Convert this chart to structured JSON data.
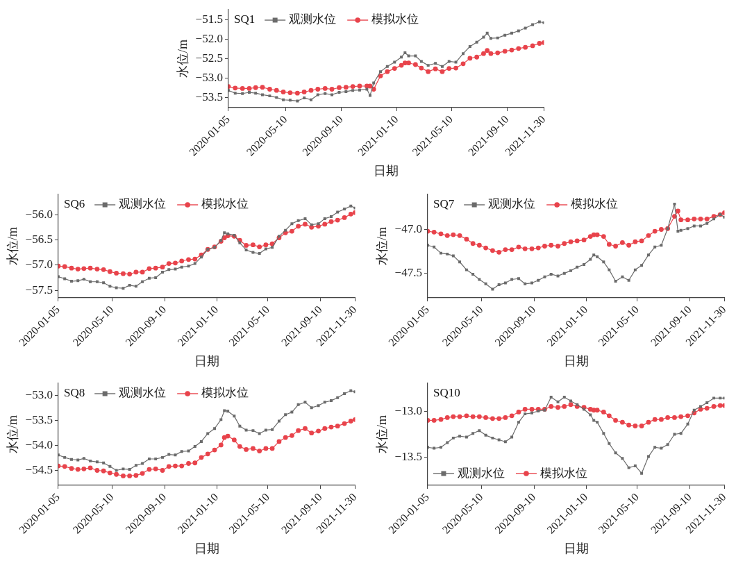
{
  "chart_data": [
    {
      "type": "line",
      "title": "SQ1",
      "xlabel": "日期",
      "ylabel": "水位/m",
      "legend": "top left",
      "x": [
        "2020-01-05",
        "2020-01-20",
        "2020-02-05",
        "2020-02-20",
        "2020-03-05",
        "2020-03-20",
        "2020-04-05",
        "2020-04-20",
        "2020-05-05",
        "2020-05-20",
        "2020-06-05",
        "2020-06-20",
        "2020-07-05",
        "2020-07-20",
        "2020-08-05",
        "2020-08-20",
        "2020-09-05",
        "2020-09-20",
        "2020-10-05",
        "2020-10-20",
        "2020-11-05",
        "2020-11-12",
        "2020-11-20",
        "2020-12-05",
        "2020-12-20",
        "2021-01-05",
        "2021-01-20",
        "2021-01-28",
        "2021-02-05",
        "2021-02-20",
        "2021-03-05",
        "2021-03-20",
        "2021-04-05",
        "2021-04-20",
        "2021-05-05",
        "2021-05-20",
        "2021-06-05",
        "2021-06-20",
        "2021-07-05",
        "2021-07-20",
        "2021-07-28",
        "2021-08-05",
        "2021-08-20",
        "2021-09-05",
        "2021-09-20",
        "2021-10-05",
        "2021-10-20",
        "2021-11-05",
        "2021-11-20",
        "2021-11-30"
      ],
      "xlim": [
        "2020-01-05",
        "2021-11-30"
      ],
      "xticks": [
        "2020-01-05",
        "2020-05-10",
        "2020-09-10",
        "2021-01-10",
        "2021-05-10",
        "2021-09-10",
        "2021-11-30"
      ],
      "ylim": [
        -53.75,
        -51.25
      ],
      "yticks": [
        {
          "value": -53.5,
          "label": "−53.5"
        },
        {
          "value": -53,
          "label": "−53.0"
        },
        {
          "value": -52.5,
          "label": "−52.5"
        },
        {
          "value": -52,
          "label": "−52.0"
        },
        {
          "value": -51.5,
          "label": "−51.5"
        }
      ],
      "series": [
        {
          "name": "观测水位",
          "color": "#6b6b6b",
          "marker": "square",
          "values": [
            -53.31,
            -53.38,
            -53.39,
            -53.36,
            -53.38,
            -53.42,
            -53.45,
            -53.49,
            -53.55,
            -53.56,
            -53.58,
            -53.5,
            -53.55,
            -53.42,
            -53.39,
            -53.42,
            -53.36,
            -53.34,
            -53.31,
            -53.3,
            -53.28,
            -53.44,
            -53.12,
            -52.83,
            -52.7,
            -52.59,
            -52.46,
            -52.35,
            -52.43,
            -52.43,
            -52.57,
            -52.67,
            -52.62,
            -52.7,
            -52.57,
            -52.59,
            -52.37,
            -52.19,
            -52.08,
            -51.95,
            -51.85,
            -51.98,
            -51.97,
            -51.9,
            -51.85,
            -51.79,
            -51.72,
            -51.63,
            -51.56,
            -51.58
          ]
        },
        {
          "name": "模拟水位",
          "color": "#e8434b",
          "marker": "circle",
          "values": [
            -53.21,
            -53.25,
            -53.26,
            -53.26,
            -53.24,
            -53.23,
            -53.28,
            -53.31,
            -53.35,
            -53.37,
            -53.38,
            -53.35,
            -53.31,
            -53.28,
            -53.26,
            -53.28,
            -53.24,
            -53.23,
            -53.21,
            -53.2,
            -53.2,
            -53.2,
            -53.28,
            -52.94,
            -52.83,
            -52.75,
            -52.67,
            -52.61,
            -52.61,
            -52.65,
            -52.74,
            -52.83,
            -52.76,
            -52.83,
            -52.75,
            -52.74,
            -52.63,
            -52.49,
            -52.46,
            -52.37,
            -52.29,
            -52.37,
            -52.35,
            -52.31,
            -52.28,
            -52.24,
            -52.21,
            -52.17,
            -52.11,
            -52.09
          ]
        }
      ]
    },
    {
      "type": "line",
      "title": "SQ6",
      "xlabel": "日期",
      "ylabel": "水位/m",
      "legend": "top left",
      "x": [
        "2020-01-05",
        "2020-01-20",
        "2020-02-05",
        "2020-02-20",
        "2020-03-05",
        "2020-03-20",
        "2020-04-05",
        "2020-04-20",
        "2020-05-05",
        "2020-05-20",
        "2020-06-05",
        "2020-06-20",
        "2020-07-05",
        "2020-07-20",
        "2020-08-05",
        "2020-08-20",
        "2020-09-05",
        "2020-09-20",
        "2020-10-05",
        "2020-10-20",
        "2020-11-05",
        "2020-11-20",
        "2020-12-05",
        "2020-12-20",
        "2021-01-05",
        "2021-01-20",
        "2021-01-28",
        "2021-02-05",
        "2021-02-20",
        "2021-03-05",
        "2021-03-20",
        "2021-04-05",
        "2021-04-20",
        "2021-05-05",
        "2021-05-20",
        "2021-06-05",
        "2021-06-20",
        "2021-07-05",
        "2021-07-20",
        "2021-08-05",
        "2021-08-20",
        "2021-09-05",
        "2021-09-20",
        "2021-10-05",
        "2021-10-20",
        "2021-11-05",
        "2021-11-20",
        "2021-11-30"
      ],
      "xlim": [
        "2020-01-05",
        "2021-11-30"
      ],
      "xticks": [
        "2020-01-05",
        "2020-05-10",
        "2020-09-10",
        "2021-01-10",
        "2021-05-10",
        "2021-09-10",
        "2021-11-30"
      ],
      "ylim": [
        -57.65,
        -55.6
      ],
      "yticks": [
        {
          "value": -57.5,
          "label": "−57.5"
        },
        {
          "value": -57,
          "label": "−57.0"
        },
        {
          "value": -56.5,
          "label": "−56.5"
        },
        {
          "value": -56,
          "label": "−56.0"
        }
      ],
      "series": [
        {
          "name": "观测水位",
          "color": "#6b6b6b",
          "marker": "square",
          "values": [
            -57.23,
            -57.27,
            -57.32,
            -57.31,
            -57.28,
            -57.33,
            -57.33,
            -57.35,
            -57.42,
            -57.45,
            -57.46,
            -57.4,
            -57.42,
            -57.33,
            -57.26,
            -57.25,
            -57.14,
            -57.09,
            -57.08,
            -57.04,
            -57.02,
            -56.97,
            -56.84,
            -56.69,
            -56.65,
            -56.51,
            -56.36,
            -56.38,
            -56.41,
            -56.56,
            -56.7,
            -56.75,
            -56.77,
            -56.68,
            -56.65,
            -56.43,
            -56.31,
            -56.18,
            -56.12,
            -56.08,
            -56.2,
            -56.18,
            -56.08,
            -56.04,
            -55.95,
            -55.89,
            -55.83,
            -55.87
          ]
        },
        {
          "name": "模拟水位",
          "color": "#e8434b",
          "marker": "circle",
          "values": [
            -57.02,
            -57.03,
            -57.06,
            -57.08,
            -57.07,
            -57.06,
            -57.08,
            -57.09,
            -57.13,
            -57.16,
            -57.17,
            -57.18,
            -57.14,
            -57.14,
            -57.07,
            -57.06,
            -57.04,
            -56.97,
            -56.96,
            -56.92,
            -56.89,
            -56.88,
            -56.8,
            -56.69,
            -56.64,
            -56.53,
            -56.46,
            -56.42,
            -56.43,
            -56.51,
            -56.61,
            -56.6,
            -56.64,
            -56.6,
            -56.58,
            -56.46,
            -56.36,
            -56.33,
            -56.23,
            -56.19,
            -56.25,
            -56.23,
            -56.19,
            -56.14,
            -56.11,
            -56.06,
            -55.99,
            -55.96
          ]
        }
      ]
    },
    {
      "type": "line",
      "title": "SQ7",
      "xlabel": "日期",
      "ylabel": "水位/m",
      "legend": "top left",
      "x": [
        "2020-01-05",
        "2020-01-20",
        "2020-02-05",
        "2020-02-20",
        "2020-03-05",
        "2020-03-20",
        "2020-04-05",
        "2020-04-20",
        "2020-05-05",
        "2020-05-20",
        "2020-06-05",
        "2020-06-20",
        "2020-07-05",
        "2020-07-20",
        "2020-08-05",
        "2020-08-20",
        "2020-09-05",
        "2020-09-20",
        "2020-10-05",
        "2020-10-20",
        "2020-11-05",
        "2020-11-20",
        "2020-12-05",
        "2020-12-20",
        "2021-01-05",
        "2021-01-20",
        "2021-01-28",
        "2021-02-05",
        "2021-02-20",
        "2021-03-05",
        "2021-03-20",
        "2021-04-05",
        "2021-04-20",
        "2021-05-05",
        "2021-05-20",
        "2021-06-05",
        "2021-06-20",
        "2021-07-05",
        "2021-07-20",
        "2021-08-05",
        "2021-08-13",
        "2021-08-20",
        "2021-09-05",
        "2021-09-20",
        "2021-10-05",
        "2021-10-20",
        "2021-11-05",
        "2021-11-20",
        "2021-11-30"
      ],
      "xlim": [
        "2020-01-05",
        "2021-11-30"
      ],
      "xticks": [
        "2020-01-05",
        "2020-05-10",
        "2020-09-10",
        "2021-01-10",
        "2021-05-10",
        "2021-09-10",
        "2021-11-30"
      ],
      "ylim": [
        -47.78,
        -46.6
      ],
      "yticks": [
        {
          "value": -47.5,
          "label": "−47.5"
        },
        {
          "value": -47,
          "label": "−47.0"
        }
      ],
      "series": [
        {
          "name": "观测水位",
          "color": "#6b6b6b",
          "marker": "square",
          "values": [
            -47.18,
            -47.2,
            -47.27,
            -47.28,
            -47.3,
            -47.37,
            -47.46,
            -47.51,
            -47.57,
            -47.62,
            -47.68,
            -47.63,
            -47.61,
            -47.57,
            -47.56,
            -47.62,
            -47.61,
            -47.58,
            -47.54,
            -47.51,
            -47.53,
            -47.5,
            -47.47,
            -47.43,
            -47.4,
            -47.34,
            -47.29,
            -47.31,
            -47.37,
            -47.46,
            -47.59,
            -47.54,
            -47.58,
            -47.46,
            -47.41,
            -47.29,
            -47.2,
            -47.18,
            -46.99,
            -46.71,
            -47.02,
            -47.01,
            -46.99,
            -46.96,
            -46.96,
            -46.93,
            -46.88,
            -46.83,
            -46.86
          ]
        },
        {
          "name": "模拟水位",
          "color": "#e8434b",
          "marker": "circle",
          "values": [
            -47.02,
            -47.03,
            -47.05,
            -47.07,
            -47.06,
            -47.07,
            -47.11,
            -47.16,
            -47.18,
            -47.21,
            -47.24,
            -47.26,
            -47.23,
            -47.23,
            -47.2,
            -47.22,
            -47.22,
            -47.21,
            -47.19,
            -47.18,
            -47.19,
            -47.16,
            -47.14,
            -47.13,
            -47.12,
            -47.08,
            -47.06,
            -47.06,
            -47.08,
            -47.17,
            -47.19,
            -47.15,
            -47.18,
            -47.14,
            -47.13,
            -47.07,
            -47.02,
            -47.0,
            -46.99,
            -46.85,
            -46.79,
            -46.89,
            -46.89,
            -46.88,
            -46.88,
            -46.88,
            -46.85,
            -46.83,
            -46.81
          ]
        }
      ]
    },
    {
      "type": "line",
      "title": "SQ8",
      "xlabel": "日期",
      "ylabel": "水位/m",
      "legend": "top left",
      "x": [
        "2020-01-05",
        "2020-01-20",
        "2020-02-05",
        "2020-02-20",
        "2020-03-05",
        "2020-03-20",
        "2020-04-05",
        "2020-04-20",
        "2020-05-05",
        "2020-05-20",
        "2020-06-05",
        "2020-06-20",
        "2020-07-05",
        "2020-07-20",
        "2020-08-05",
        "2020-08-20",
        "2020-09-05",
        "2020-09-20",
        "2020-10-05",
        "2020-10-20",
        "2020-11-05",
        "2020-11-20",
        "2020-12-05",
        "2020-12-20",
        "2021-01-05",
        "2021-01-20",
        "2021-01-28",
        "2021-02-05",
        "2021-02-20",
        "2021-03-05",
        "2021-03-20",
        "2021-04-05",
        "2021-04-20",
        "2021-05-05",
        "2021-05-20",
        "2021-06-05",
        "2021-06-20",
        "2021-07-05",
        "2021-07-20",
        "2021-08-05",
        "2021-08-20",
        "2021-09-05",
        "2021-09-20",
        "2021-10-05",
        "2021-10-20",
        "2021-11-05",
        "2021-11-20",
        "2021-11-30"
      ],
      "xlim": [
        "2020-01-05",
        "2021-11-30"
      ],
      "xticks": [
        "2020-01-05",
        "2020-05-10",
        "2020-09-10",
        "2021-01-10",
        "2021-05-10",
        "2021-09-10",
        "2021-11-30"
      ],
      "ylim": [
        -54.8,
        -52.75
      ],
      "yticks": [
        {
          "value": -54.5,
          "label": "−54.5"
        },
        {
          "value": -54,
          "label": "−54.0"
        },
        {
          "value": -53.5,
          "label": "−53.5"
        },
        {
          "value": -53,
          "label": "−53.0"
        }
      ],
      "series": [
        {
          "name": "观测水位",
          "color": "#6b6b6b",
          "marker": "square",
          "values": [
            -54.19,
            -54.24,
            -54.28,
            -54.29,
            -54.26,
            -54.31,
            -54.33,
            -54.35,
            -54.42,
            -54.5,
            -54.47,
            -54.48,
            -54.4,
            -54.36,
            -54.27,
            -54.27,
            -54.24,
            -54.18,
            -54.19,
            -54.12,
            -54.11,
            -54.02,
            -53.92,
            -53.76,
            -53.66,
            -53.48,
            -53.3,
            -53.31,
            -53.41,
            -53.61,
            -53.69,
            -53.7,
            -53.76,
            -53.69,
            -53.68,
            -53.51,
            -53.38,
            -53.33,
            -53.18,
            -53.13,
            -53.24,
            -53.2,
            -53.13,
            -53.1,
            -53.04,
            -52.96,
            -52.9,
            -52.92
          ]
        },
        {
          "name": "模拟水位",
          "color": "#e8434b",
          "marker": "circle",
          "values": [
            -54.41,
            -54.42,
            -54.46,
            -54.48,
            -54.47,
            -54.45,
            -54.5,
            -54.51,
            -54.55,
            -54.58,
            -54.61,
            -54.61,
            -54.6,
            -54.56,
            -54.48,
            -54.47,
            -54.5,
            -54.42,
            -54.41,
            -54.41,
            -54.36,
            -54.35,
            -54.24,
            -54.17,
            -54.09,
            -53.99,
            -53.84,
            -53.81,
            -53.89,
            -54.02,
            -54.08,
            -54.06,
            -54.11,
            -54.06,
            -54.06,
            -53.92,
            -53.84,
            -53.8,
            -53.7,
            -53.66,
            -53.75,
            -53.71,
            -53.66,
            -53.63,
            -53.61,
            -53.56,
            -53.51,
            -53.48
          ]
        }
      ]
    },
    {
      "type": "line",
      "title": "SQ10",
      "xlabel": "日期",
      "ylabel": "水位/m",
      "legend": "bottom left",
      "x": [
        "2020-01-05",
        "2020-01-20",
        "2020-02-05",
        "2020-02-20",
        "2020-03-05",
        "2020-03-20",
        "2020-04-05",
        "2020-04-20",
        "2020-05-05",
        "2020-05-20",
        "2020-06-05",
        "2020-06-20",
        "2020-07-05",
        "2020-07-20",
        "2020-08-05",
        "2020-08-20",
        "2020-09-05",
        "2020-09-20",
        "2020-10-05",
        "2020-10-20",
        "2020-11-05",
        "2020-11-20",
        "2020-12-05",
        "2020-12-20",
        "2021-01-05",
        "2021-01-20",
        "2021-01-28",
        "2021-02-05",
        "2021-02-20",
        "2021-03-05",
        "2021-03-20",
        "2021-04-05",
        "2021-04-20",
        "2021-05-05",
        "2021-05-20",
        "2021-06-05",
        "2021-06-20",
        "2021-07-05",
        "2021-07-20",
        "2021-08-05",
        "2021-08-20",
        "2021-09-05",
        "2021-09-20",
        "2021-10-05",
        "2021-10-20",
        "2021-11-05",
        "2021-11-20",
        "2021-11-30"
      ],
      "xlim": [
        "2020-01-05",
        "2021-11-30"
      ],
      "xticks": [
        "2020-01-05",
        "2020-05-10",
        "2020-09-10",
        "2021-01-10",
        "2021-05-10",
        "2021-09-10",
        "2021-11-30"
      ],
      "ylim": [
        -13.8,
        -12.7
      ],
      "yticks": [
        {
          "value": -13.5,
          "label": "−13.5"
        },
        {
          "value": -13,
          "label": "−13.0"
        }
      ],
      "series": [
        {
          "name": "观测水位",
          "color": "#6b6b6b",
          "marker": "square",
          "values": [
            -13.39,
            -13.4,
            -13.39,
            -13.34,
            -13.29,
            -13.27,
            -13.28,
            -13.24,
            -13.21,
            -13.26,
            -13.29,
            -13.31,
            -13.33,
            -13.28,
            -13.12,
            -13.03,
            -13.02,
            -13.0,
            -12.99,
            -12.85,
            -12.9,
            -12.85,
            -12.89,
            -12.93,
            -12.98,
            -13.04,
            -13.1,
            -13.12,
            -13.24,
            -13.35,
            -13.45,
            -13.51,
            -13.61,
            -13.59,
            -13.67,
            -13.49,
            -13.39,
            -13.4,
            -13.36,
            -13.25,
            -13.24,
            -13.14,
            -12.99,
            -12.95,
            -12.91,
            -12.86,
            -12.86,
            -12.86
          ]
        },
        {
          "name": "模拟水位",
          "color": "#e8434b",
          "marker": "circle",
          "values": [
            -13.1,
            -13.1,
            -13.09,
            -13.07,
            -13.06,
            -13.06,
            -13.05,
            -13.06,
            -13.06,
            -13.07,
            -13.08,
            -13.08,
            -13.07,
            -13.05,
            -13.01,
            -12.98,
            -12.98,
            -12.98,
            -12.98,
            -12.95,
            -12.96,
            -12.95,
            -12.93,
            -12.95,
            -12.96,
            -12.98,
            -12.99,
            -12.99,
            -13.01,
            -13.05,
            -13.1,
            -13.12,
            -13.15,
            -13.16,
            -13.16,
            -13.12,
            -13.09,
            -13.09,
            -13.07,
            -13.07,
            -13.06,
            -13.05,
            -13.02,
            -12.98,
            -12.97,
            -12.95,
            -12.94,
            -12.94
          ]
        }
      ]
    }
  ]
}
